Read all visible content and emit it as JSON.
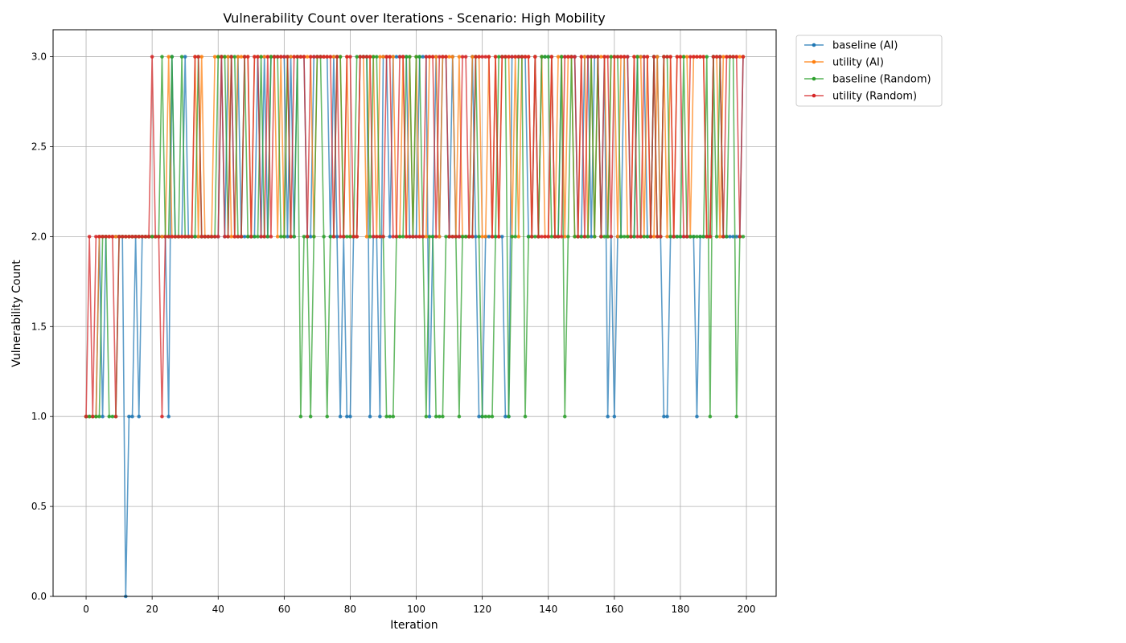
{
  "chart_data": {
    "type": "line",
    "title": "Vulnerability Count over Iterations - Scenario: High Mobility",
    "xlabel": "Iteration",
    "ylabel": "Vulnerability Count",
    "xlim": [
      -10,
      209
    ],
    "ylim": [
      0.0,
      3.15
    ],
    "x_ticks": [
      0,
      20,
      40,
      60,
      80,
      100,
      120,
      140,
      160,
      180,
      200
    ],
    "y_ticks": [
      0.0,
      0.5,
      1.0,
      1.5,
      2.0,
      2.5,
      3.0
    ],
    "y_tick_labels": [
      "0.0",
      "0.5",
      "1.0",
      "1.5",
      "2.0",
      "2.5",
      "3.0"
    ],
    "grid": true,
    "legend_position": "outside-top-right",
    "series": [
      {
        "name": "baseline (AI)",
        "color": "#1f77b4",
        "values": [
          1,
          1,
          1,
          1,
          2,
          1,
          2,
          2,
          2,
          2,
          2,
          2,
          0,
          1,
          1,
          2,
          1,
          2,
          2,
          2,
          2,
          2,
          2,
          2,
          2,
          1,
          3,
          2,
          2,
          2,
          3,
          2,
          2,
          2,
          2,
          2,
          2,
          2,
          2,
          2,
          2,
          3,
          2,
          3,
          3,
          2,
          3,
          2,
          2,
          2,
          2,
          2,
          3,
          2,
          3,
          2,
          3,
          3,
          3,
          3,
          3,
          2,
          3,
          2,
          3,
          3,
          3,
          2,
          2,
          3,
          3,
          3,
          3,
          3,
          2,
          3,
          2,
          1,
          2,
          1,
          1,
          2,
          2,
          3,
          3,
          3,
          1,
          2,
          2,
          1,
          3,
          3,
          2,
          3,
          3,
          3,
          3,
          3,
          2,
          2,
          2,
          3,
          3,
          3,
          1,
          2,
          3,
          2,
          3,
          3,
          2,
          3,
          2,
          2,
          2,
          2,
          2,
          3,
          2,
          1,
          1,
          2,
          2,
          2,
          2,
          2,
          2,
          1,
          1,
          3,
          3,
          3,
          3,
          3,
          2,
          2,
          3,
          2,
          3,
          3,
          3,
          3,
          2,
          2,
          3,
          3,
          3,
          3,
          3,
          2,
          2,
          3,
          3,
          2,
          3,
          3,
          2,
          3,
          1,
          2,
          1,
          2,
          2,
          3,
          3,
          2,
          2,
          3,
          3,
          3,
          2,
          2,
          3,
          3,
          2,
          1,
          1,
          2,
          2,
          2,
          2,
          2,
          2,
          2,
          2,
          1,
          2,
          2,
          2,
          2,
          3,
          3,
          3,
          2,
          2,
          2,
          2,
          2,
          2,
          3
        ],
        "source": "read from plot"
      },
      {
        "name": "utility (AI)",
        "color": "#ff7f0e",
        "values": [
          1,
          1,
          1,
          1,
          2,
          2,
          2,
          2,
          2,
          2,
          2,
          2,
          2,
          2,
          2,
          2,
          2,
          2,
          2,
          2,
          2,
          2,
          2,
          2,
          2,
          3,
          2,
          2,
          2,
          2,
          2,
          2,
          2,
          3,
          2,
          3,
          2,
          2,
          2,
          3,
          3,
          3,
          3,
          3,
          2,
          2,
          3,
          3,
          3,
          3,
          2,
          3,
          3,
          3,
          3,
          3,
          3,
          3,
          2,
          3,
          2,
          3,
          3,
          3,
          3,
          3,
          3,
          3,
          3,
          2,
          3,
          3,
          3,
          3,
          3,
          3,
          3,
          3,
          2,
          3,
          2,
          2,
          2,
          3,
          3,
          2,
          3,
          3,
          2,
          3,
          3,
          3,
          3,
          3,
          2,
          2,
          3,
          2,
          3,
          2,
          3,
          2,
          2,
          2,
          3,
          3,
          3,
          2,
          3,
          3,
          3,
          3,
          2,
          3,
          2,
          2,
          2,
          3,
          3,
          3,
          2,
          2,
          3,
          2,
          3,
          2,
          3,
          3,
          3,
          2,
          3,
          2,
          3,
          3,
          3,
          2,
          3,
          2,
          3,
          2,
          2,
          3,
          2,
          3,
          3,
          2,
          3,
          3,
          2,
          2,
          3,
          3,
          2,
          3,
          2,
          3,
          3,
          3,
          2,
          3,
          3,
          2,
          3,
          3,
          2,
          2,
          3,
          3,
          3,
          2,
          3,
          2,
          2,
          3,
          2,
          3,
          2,
          3,
          2,
          3,
          3,
          3,
          3,
          2,
          3,
          3,
          3,
          3,
          2,
          2,
          3,
          3,
          2,
          3,
          3,
          3,
          3,
          3,
          3,
          3
        ],
        "source": "read from plot"
      },
      {
        "name": "baseline (Random)",
        "color": "#2ca02c",
        "values": [
          1,
          1,
          1,
          1,
          1,
          2,
          2,
          1,
          1,
          1,
          2,
          2,
          2,
          2,
          2,
          2,
          2,
          2,
          2,
          2,
          2,
          2,
          2,
          3,
          2,
          2,
          3,
          2,
          2,
          3,
          2,
          2,
          2,
          2,
          3,
          2,
          2,
          2,
          2,
          2,
          3,
          3,
          3,
          2,
          3,
          3,
          2,
          2,
          3,
          2,
          2,
          2,
          2,
          3,
          2,
          2,
          3,
          3,
          3,
          2,
          2,
          3,
          2,
          2,
          3,
          1,
          2,
          2,
          1,
          2,
          3,
          3,
          2,
          1,
          2,
          2,
          3,
          3,
          2,
          2,
          2,
          2,
          3,
          3,
          3,
          3,
          2,
          3,
          3,
          2,
          2,
          1,
          1,
          1,
          2,
          2,
          2,
          3,
          3,
          2,
          3,
          3,
          2,
          1,
          2,
          2,
          1,
          1,
          1,
          2,
          2,
          2,
          2,
          1,
          2,
          2,
          2,
          2,
          3,
          2,
          1,
          1,
          1,
          1,
          2,
          3,
          3,
          3,
          1,
          2,
          2,
          3,
          3,
          1,
          2,
          2,
          2,
          2,
          3,
          3,
          3,
          2,
          2,
          2,
          3,
          1,
          2,
          3,
          2,
          2,
          2,
          2,
          2,
          3,
          2,
          3,
          2,
          2,
          2,
          3,
          3,
          3,
          2,
          2,
          2,
          2,
          2,
          3,
          2,
          2,
          2,
          2,
          3,
          2,
          2,
          3,
          3,
          2,
          2,
          2,
          2,
          3,
          2,
          2,
          2,
          2,
          2,
          2,
          3,
          1,
          3,
          2,
          3,
          2,
          2,
          3,
          3,
          1,
          2,
          2
        ],
        "source": "read from plot"
      },
      {
        "name": "utility (Random)",
        "color": "#d62728",
        "values": [
          1,
          2,
          1,
          2,
          2,
          2,
          2,
          2,
          2,
          1,
          2,
          2,
          2,
          2,
          2,
          2,
          2,
          2,
          2,
          2,
          3,
          2,
          2,
          1,
          2,
          2,
          2,
          2,
          2,
          2,
          2,
          2,
          2,
          3,
          3,
          2,
          2,
          2,
          2,
          2,
          2,
          3,
          2,
          2,
          3,
          2,
          2,
          2,
          3,
          3,
          2,
          3,
          3,
          2,
          2,
          3,
          2,
          3,
          3,
          3,
          3,
          3,
          2,
          3,
          3,
          3,
          3,
          2,
          3,
          3,
          3,
          3,
          3,
          3,
          3,
          2,
          3,
          2,
          2,
          3,
          3,
          2,
          2,
          3,
          3,
          3,
          3,
          2,
          2,
          2,
          2,
          3,
          3,
          2,
          2,
          3,
          3,
          2,
          2,
          2,
          2,
          2,
          2,
          3,
          3,
          3,
          2,
          3,
          3,
          3,
          2,
          2,
          2,
          2,
          3,
          3,
          2,
          2,
          3,
          3,
          3,
          3,
          3,
          2,
          3,
          2,
          3,
          3,
          3,
          3,
          3,
          3,
          3,
          3,
          3,
          2,
          3,
          2,
          2,
          2,
          2,
          3,
          2,
          2,
          2,
          3,
          3,
          3,
          3,
          2,
          3,
          2,
          3,
          3,
          3,
          3,
          2,
          3,
          3,
          2,
          3,
          3,
          3,
          3,
          3,
          2,
          3,
          2,
          2,
          3,
          3,
          2,
          3,
          2,
          2,
          3,
          3,
          3,
          2,
          3,
          3,
          2,
          2,
          3,
          3,
          3,
          3,
          3,
          2,
          2,
          3,
          3,
          3,
          2,
          3,
          3,
          3,
          3,
          2,
          3
        ],
        "source": "read from plot"
      }
    ]
  }
}
